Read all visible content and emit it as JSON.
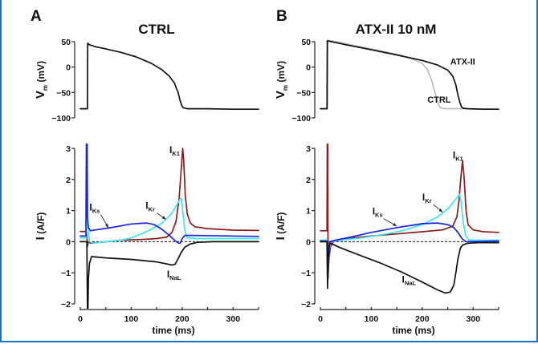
{
  "figure": {
    "border_color": "#1a74c4",
    "colors": {
      "IK1": "#8b1c1c",
      "IKr": "#3fe6f0",
      "IKs": "#1c22e0",
      "INaL": "#111111",
      "AP_ATX": "#111111",
      "AP_CTRL": "#b8b8b8",
      "AP_single": "#111111"
    }
  },
  "chart_data": [
    {
      "id": "A-voltage",
      "panel": "A",
      "panel_letter": "A",
      "title": "CTRL",
      "type": "line",
      "ylabel_main": "V",
      "ylabel_sub": "m",
      "ylabel_unit": "(mV)",
      "ylim": [
        -100,
        50
      ],
      "xlim": [
        0,
        350
      ],
      "yticks": [
        50,
        0,
        -50,
        -100
      ],
      "ytick_labels": [
        "50",
        "0",
        "−50",
        "−100"
      ],
      "series": [
        {
          "name": "CTRL",
          "color_key": "AP_single",
          "x": [
            0,
            14,
            14.5,
            18,
            30,
            50,
            80,
            110,
            140,
            160,
            175,
            185,
            192,
            196,
            199,
            202,
            210,
            250,
            300,
            350
          ],
          "y": [
            -82,
            -82,
            47,
            44,
            40,
            36,
            29,
            20,
            7,
            -5,
            -18,
            -32,
            -50,
            -66,
            -75,
            -80,
            -82,
            -82,
            -83,
            -83
          ]
        }
      ],
      "annotations": []
    },
    {
      "id": "B-voltage",
      "panel": "B",
      "panel_letter": "B",
      "title": "ATX-II 10 nM",
      "type": "line",
      "ylabel_main": "V",
      "ylabel_sub": "m",
      "ylabel_unit": "(mV)",
      "ylim": [
        -100,
        50
      ],
      "xlim": [
        0,
        350
      ],
      "yticks": [
        50,
        0,
        -50,
        -100
      ],
      "ytick_labels": [
        "50",
        "0",
        "−50",
        "−100"
      ],
      "series": [
        {
          "name": "CTRL",
          "color_key": "AP_CTRL",
          "x": [
            0,
            14,
            14.5,
            20,
            50,
            100,
            150,
            180,
            200,
            210,
            218,
            225,
            230,
            233,
            236,
            245,
            280,
            350
          ],
          "y": [
            -82,
            -82,
            52,
            52,
            46,
            36,
            25,
            16,
            7,
            -5,
            -25,
            -50,
            -68,
            -76,
            -80,
            -82,
            -82,
            -83
          ]
        },
        {
          "name": "ATX-II",
          "color_key": "AP_ATX",
          "x": [
            0,
            13,
            13.5,
            18,
            50,
            100,
            150,
            200,
            230,
            250,
            260,
            266,
            270,
            274,
            277,
            280,
            290,
            320,
            350
          ],
          "y": [
            -82,
            -82,
            52,
            51,
            44,
            34,
            24,
            13,
            4,
            -6,
            -18,
            -35,
            -55,
            -70,
            -78,
            -81,
            -82,
            -83,
            -83
          ]
        }
      ],
      "annotations": [
        {
          "text": "ATX-II",
          "sub": "",
          "x": 255,
          "y": 5
        },
        {
          "text": "CTRL",
          "sub": "",
          "x": 210,
          "y": -70
        }
      ]
    },
    {
      "id": "A-current",
      "panel": "A",
      "type": "line",
      "ylabel_main": "I",
      "ylabel_unit": "(A/F)",
      "xlabel": "time (ms)",
      "ylim": [
        -2,
        3
      ],
      "xlim": [
        0,
        350
      ],
      "yticks": [
        3,
        2,
        1,
        0,
        -1,
        -2
      ],
      "ytick_labels": [
        "3",
        "2",
        "1",
        "0",
        "−1",
        "−2"
      ],
      "xticks": [
        0,
        100,
        200,
        300
      ],
      "xtick_labels": [
        "0",
        "100",
        "200",
        "300"
      ],
      "xminor": [
        50,
        150,
        250,
        350
      ],
      "zero_line": true,
      "series": [
        {
          "name": "IK1",
          "color_key": "IK1",
          "x": [
            0,
            12,
            13,
            14,
            16,
            20,
            40,
            80,
            120,
            150,
            170,
            180,
            188,
            194,
            198,
            201,
            203,
            206,
            210,
            216,
            225,
            250,
            300,
            350
          ],
          "y": [
            0.33,
            0.33,
            0.2,
            -0.15,
            0.0,
            -0.05,
            -0.02,
            0.05,
            0.07,
            0.1,
            0.15,
            0.3,
            0.65,
            1.4,
            2.3,
            3.0,
            2.6,
            1.5,
            0.9,
            0.6,
            0.48,
            0.42,
            0.37,
            0.36
          ]
        },
        {
          "name": "IKr",
          "color_key": "IKr",
          "x": [
            0,
            12,
            13,
            14,
            15,
            18,
            25,
            50,
            80,
            100,
            120,
            140,
            160,
            175,
            185,
            192,
            196,
            198,
            201,
            205,
            210,
            230,
            350
          ],
          "y": [
            0.12,
            0.12,
            3.3,
            3.3,
            0.5,
            0.0,
            -0.05,
            0.0,
            0.05,
            0.12,
            0.25,
            0.4,
            0.6,
            0.82,
            1.05,
            1.25,
            1.38,
            1.4,
            1.0,
            0.4,
            0.12,
            0.1,
            0.1
          ]
        },
        {
          "name": "IKs",
          "color_key": "IKs",
          "x": [
            0,
            11,
            12,
            13,
            14,
            16,
            20,
            30,
            60,
            100,
            130,
            145,
            160,
            175,
            185,
            193,
            196,
            200,
            205,
            220,
            350
          ],
          "y": [
            0.18,
            0.18,
            3.3,
            3.3,
            0.8,
            0.45,
            0.35,
            0.38,
            0.45,
            0.57,
            0.6,
            0.55,
            0.4,
            0.2,
            0.05,
            -0.05,
            -0.05,
            0.1,
            0.2,
            0.2,
            0.17
          ]
        },
        {
          "name": "INaL",
          "color_key": "INaL",
          "x": [
            0,
            13,
            14,
            15,
            16,
            18,
            22,
            50,
            100,
            150,
            180,
            186,
            192,
            198,
            205,
            215,
            230,
            260,
            350
          ],
          "y": [
            0.0,
            0.0,
            -2.2,
            -2.2,
            -1.2,
            -0.7,
            -0.48,
            -0.52,
            -0.57,
            -0.65,
            -0.75,
            -0.73,
            -0.55,
            -0.35,
            -0.18,
            -0.08,
            -0.02,
            0.0,
            0.0
          ]
        }
      ],
      "annotations": [
        {
          "text": "I",
          "sub": "Ks",
          "x": 18,
          "y": 1.0,
          "arrow_to": [
            55,
            0.45
          ]
        },
        {
          "text": "I",
          "sub": "Kr",
          "x": 128,
          "y": 1.05,
          "arrow_to": [
            168,
            0.72
          ]
        },
        {
          "text": "I",
          "sub": "K1",
          "x": 175,
          "y": 2.85,
          "arrow_to": null
        },
        {
          "text": "I",
          "sub": "NaL",
          "x": 170,
          "y": -1.15,
          "arrow_to": null
        }
      ]
    },
    {
      "id": "B-current",
      "panel": "B",
      "type": "line",
      "ylabel_main": "I",
      "ylabel_unit": "(A/F)",
      "xlabel": "time (ms)",
      "ylim": [
        -2,
        3
      ],
      "xlim": [
        0,
        350
      ],
      "yticks": [
        3,
        2,
        1,
        0,
        -1,
        -2
      ],
      "ytick_labels": [
        "3",
        "2",
        "1",
        "0",
        "−1",
        "−2"
      ],
      "xticks": [
        0,
        100,
        200,
        300
      ],
      "xtick_labels": [
        "0",
        "100",
        "200",
        "300"
      ],
      "xminor": [
        50,
        150,
        250,
        350
      ],
      "zero_line": true,
      "series": [
        {
          "name": "IK1",
          "color_key": "IK1",
          "x": [
            0,
            13,
            13.5,
            14.5,
            15,
            17,
            20,
            25,
            50,
            100,
            150,
            200,
            240,
            260,
            268,
            272,
            276,
            279,
            282,
            286,
            290,
            300,
            320,
            350
          ],
          "y": [
            0.35,
            0.35,
            3.3,
            3.3,
            -1.0,
            -0.5,
            -0.15,
            0.0,
            0.1,
            0.18,
            0.25,
            0.32,
            0.38,
            0.5,
            0.8,
            1.3,
            2.1,
            2.6,
            2.1,
            1.0,
            0.55,
            0.38,
            0.32,
            0.3
          ]
        },
        {
          "name": "IKr",
          "color_key": "IKr",
          "x": [
            0,
            13,
            15,
            20,
            40,
            80,
            120,
            160,
            200,
            230,
            250,
            265,
            273,
            276,
            280,
            285,
            292,
            350
          ],
          "y": [
            0.05,
            0.05,
            -0.5,
            0.0,
            0.05,
            0.12,
            0.22,
            0.35,
            0.55,
            0.8,
            1.05,
            1.35,
            1.52,
            1.3,
            0.7,
            0.2,
            0.05,
            0.05
          ]
        },
        {
          "name": "IKs",
          "color_key": "IKs",
          "x": [
            0,
            13,
            15,
            18,
            30,
            60,
            100,
            150,
            200,
            230,
            250,
            262,
            270,
            278,
            285,
            292,
            350
          ],
          "y": [
            0.02,
            0.02,
            -1.2,
            0.0,
            0.05,
            0.15,
            0.3,
            0.45,
            0.58,
            0.6,
            0.55,
            0.45,
            0.3,
            0.1,
            0.0,
            0.0,
            0.02
          ]
        },
        {
          "name": "INaL",
          "color_key": "INaL",
          "x": [
            0,
            13,
            14,
            15,
            17,
            20,
            40,
            80,
            120,
            160,
            200,
            230,
            245,
            255,
            262,
            266,
            270,
            275,
            280,
            290,
            310,
            350
          ],
          "y": [
            0.0,
            0.0,
            -1.5,
            -0.6,
            -0.1,
            -0.05,
            -0.2,
            -0.45,
            -0.7,
            -0.98,
            -1.3,
            -1.55,
            -1.65,
            -1.62,
            -1.4,
            -1.0,
            -0.55,
            -0.2,
            -0.1,
            -0.05,
            -0.03,
            -0.03
          ]
        }
      ],
      "annotations": [
        {
          "text": "I",
          "sub": "Ks",
          "x": 102,
          "y": 0.87,
          "arrow_to": [
            150,
            0.5
          ]
        },
        {
          "text": "I",
          "sub": "Kr",
          "x": 200,
          "y": 1.32,
          "arrow_to": [
            240,
            0.95
          ]
        },
        {
          "text": "I",
          "sub": "K1",
          "x": 260,
          "y": 2.68,
          "arrow_to": null
        },
        {
          "text": "I",
          "sub": "NaL",
          "x": 160,
          "y": -1.32,
          "arrow_to": null
        }
      ]
    }
  ]
}
